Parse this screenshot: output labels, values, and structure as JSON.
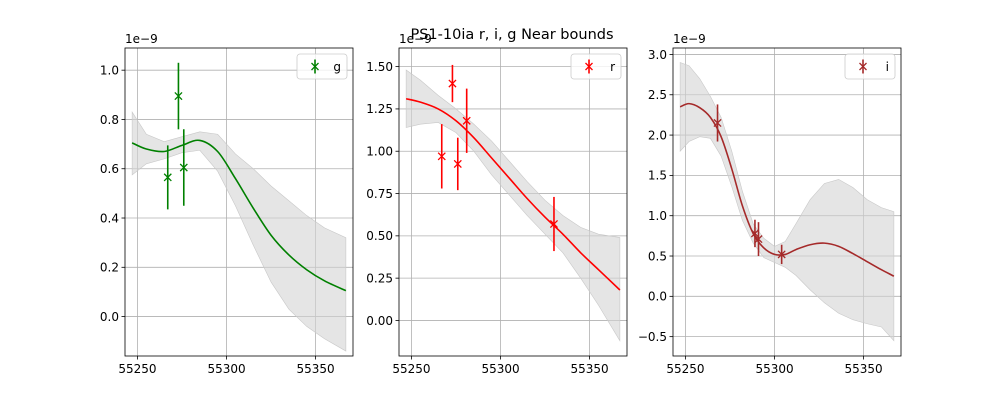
{
  "figure": {
    "title": "PS1-10ia  r, i, g Near bounds"
  },
  "chart_data": [
    {
      "type": "scatter",
      "band": "g",
      "color": "#008000",
      "fill_color": "#d3d3d3",
      "grid": true,
      "xlim": [
        55243,
        55371
      ],
      "ylim": [
        -0.16,
        1.09
      ],
      "x_ticks": [
        55250,
        55300,
        55350
      ],
      "y_ticks": [
        0.0,
        0.2,
        0.4,
        0.6,
        0.8,
        1.0
      ],
      "x_tick_labels": [
        "55250",
        "55300",
        "55350"
      ],
      "y_tick_labels": [
        "0.0",
        "0.2",
        "0.4",
        "0.6",
        "0.8",
        "1.0"
      ],
      "y_offset_text": "1e−9",
      "legend": {
        "label": "g",
        "placement": "top-right"
      },
      "points": [
        {
          "x": 55267,
          "y": 0.565,
          "err": 0.13
        },
        {
          "x": 55273,
          "y": 0.895,
          "err": 0.135
        },
        {
          "x": 55276,
          "y": 0.605,
          "err": 0.155
        }
      ],
      "fit": {
        "x": [
          55247,
          55255,
          55265,
          55275,
          55285,
          55295,
          55305,
          55315,
          55325,
          55335,
          55345,
          55355,
          55367
        ],
        "y": [
          0.705,
          0.68,
          0.67,
          0.695,
          0.715,
          0.67,
          0.56,
          0.44,
          0.33,
          0.25,
          0.19,
          0.145,
          0.105
        ],
        "upper": [
          0.83,
          0.74,
          0.71,
          0.73,
          0.75,
          0.74,
          0.66,
          0.6,
          0.53,
          0.47,
          0.41,
          0.36,
          0.32
        ],
        "lower": [
          0.575,
          0.62,
          0.64,
          0.665,
          0.675,
          0.59,
          0.45,
          0.29,
          0.14,
          0.03,
          -0.04,
          -0.09,
          -0.14
        ]
      }
    },
    {
      "type": "scatter",
      "band": "r",
      "color": "#ff0000",
      "fill_color": "#d3d3d3",
      "grid": true,
      "xlim": [
        55243,
        55371
      ],
      "ylim": [
        -0.21,
        1.61
      ],
      "x_ticks": [
        55250,
        55300,
        55350
      ],
      "y_ticks": [
        0.0,
        0.25,
        0.5,
        0.75,
        1.0,
        1.25,
        1.5
      ],
      "x_tick_labels": [
        "55250",
        "55300",
        "55350"
      ],
      "y_tick_labels": [
        "0.00",
        "0.25",
        "0.50",
        "0.75",
        "1.00",
        "1.25",
        "1.50"
      ],
      "y_offset_text": "1e−9",
      "legend": {
        "label": "r",
        "placement": "top-right"
      },
      "points": [
        {
          "x": 55267,
          "y": 0.97,
          "err": 0.19
        },
        {
          "x": 55273,
          "y": 1.4,
          "err": 0.11
        },
        {
          "x": 55276,
          "y": 0.925,
          "err": 0.155
        },
        {
          "x": 55281,
          "y": 1.18,
          "err": 0.19
        },
        {
          "x": 55330,
          "y": 0.57,
          "err": 0.16
        }
      ],
      "fit": {
        "x": [
          55247,
          55255,
          55265,
          55275,
          55285,
          55295,
          55305,
          55315,
          55325,
          55335,
          55345,
          55355,
          55367
        ],
        "y": [
          1.31,
          1.29,
          1.25,
          1.18,
          1.08,
          0.96,
          0.84,
          0.72,
          0.61,
          0.51,
          0.4,
          0.3,
          0.18
        ],
        "upper": [
          1.48,
          1.42,
          1.33,
          1.25,
          1.16,
          1.06,
          0.94,
          0.82,
          0.71,
          0.62,
          0.55,
          0.51,
          0.49
        ],
        "lower": [
          1.14,
          1.16,
          1.17,
          1.11,
          1.0,
          0.86,
          0.74,
          0.62,
          0.51,
          0.4,
          0.25,
          0.09,
          -0.12
        ]
      }
    },
    {
      "type": "scatter",
      "band": "i",
      "color": "#a52a2a",
      "fill_color": "#d3d3d3",
      "grid": true,
      "xlim": [
        55243,
        55371
      ],
      "ylim": [
        -0.74,
        3.08
      ],
      "x_ticks": [
        55250,
        55300,
        55350
      ],
      "y_ticks": [
        -0.5,
        0.0,
        0.5,
        1.0,
        1.5,
        2.0,
        2.5,
        3.0
      ],
      "x_tick_labels": [
        "55250",
        "55300",
        "55350"
      ],
      "y_tick_labels": [
        "−0.5",
        "0.0",
        "0.5",
        "1.0",
        "1.5",
        "2.0",
        "2.5",
        "3.0"
      ],
      "y_offset_text": "1e−9",
      "legend": {
        "label": "i",
        "placement": "top-right"
      },
      "points": [
        {
          "x": 55268,
          "y": 2.15,
          "err": 0.23
        },
        {
          "x": 55289,
          "y": 0.78,
          "err": 0.17
        },
        {
          "x": 55291,
          "y": 0.71,
          "err": 0.21
        },
        {
          "x": 55304,
          "y": 0.52,
          "err": 0.12
        }
      ],
      "fit": {
        "x": [
          55247,
          55252,
          55258,
          55264,
          55270,
          55276,
          55282,
          55288,
          55294,
          55300,
          55306,
          55312,
          55320,
          55328,
          55336,
          55344,
          55352,
          55360,
          55367
        ],
        "y": [
          2.35,
          2.39,
          2.34,
          2.22,
          1.98,
          1.58,
          1.12,
          0.78,
          0.6,
          0.52,
          0.52,
          0.58,
          0.64,
          0.66,
          0.62,
          0.53,
          0.43,
          0.33,
          0.25
        ],
        "upper": [
          2.9,
          2.86,
          2.7,
          2.48,
          2.22,
          1.8,
          1.3,
          0.9,
          0.72,
          0.62,
          0.68,
          0.9,
          1.2,
          1.4,
          1.45,
          1.35,
          1.2,
          1.1,
          1.05
        ],
        "lower": [
          1.8,
          1.92,
          1.98,
          1.96,
          1.74,
          1.36,
          0.94,
          0.66,
          0.48,
          0.42,
          0.36,
          0.26,
          0.08,
          -0.08,
          -0.21,
          -0.29,
          -0.34,
          -0.38,
          -0.55
        ]
      }
    }
  ]
}
